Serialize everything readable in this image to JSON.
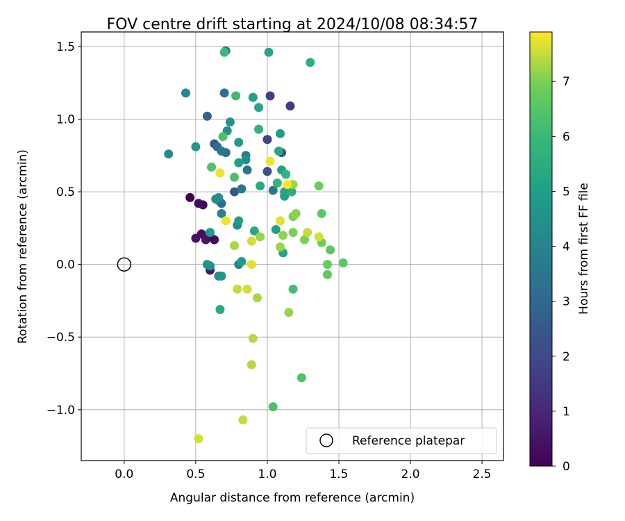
{
  "chart_data": {
    "type": "scatter",
    "title": "FOV centre drift starting at 2024/10/08 08:34:57",
    "xlabel": "Angular distance from reference (arcmin)",
    "ylabel": "Rotation from reference (arcmin)",
    "xlim": [
      -0.3,
      2.65
    ],
    "ylim": [
      -1.35,
      1.6
    ],
    "x_ticks": [
      0.0,
      0.5,
      1.0,
      1.5,
      2.0,
      2.5
    ],
    "x_tick_labels": [
      "0.0",
      "0.5",
      "1.0",
      "1.5",
      "2.0",
      "2.5"
    ],
    "y_ticks": [
      -1.0,
      -0.5,
      0.0,
      0.5,
      1.0,
      1.5
    ],
    "y_tick_labels": [
      "−1.0",
      "−0.5",
      "0.0",
      "0.5",
      "1.0",
      "1.5"
    ],
    "grid": true,
    "legend": {
      "placement": "lower-right",
      "label": "Reference platepar"
    },
    "reference_point": {
      "x": 0.0,
      "y": 0.0
    },
    "colorbar": {
      "label": "Hours from first FF file",
      "range": [
        0,
        7.9
      ],
      "ticks": [
        0,
        1,
        2,
        3,
        4,
        5,
        6,
        7
      ],
      "colormap": "viridis"
    },
    "points": [
      {
        "x": 0.46,
        "y": 0.46,
        "hours": 0.0
      },
      {
        "x": 0.52,
        "y": 0.42,
        "hours": 0.3
      },
      {
        "x": 0.55,
        "y": 0.41,
        "hours": 0.2
      },
      {
        "x": 0.5,
        "y": 0.18,
        "hours": 0.4
      },
      {
        "x": 0.54,
        "y": 0.21,
        "hours": 0.3
      },
      {
        "x": 0.57,
        "y": 0.17,
        "hours": 0.5
      },
      {
        "x": 0.6,
        "y": 0.19,
        "hours": 0.4
      },
      {
        "x": 0.63,
        "y": 0.17,
        "hours": 0.2
      },
      {
        "x": 0.6,
        "y": -0.04,
        "hours": 0.6
      },
      {
        "x": 1.16,
        "y": 1.09,
        "hours": 1.6
      },
      {
        "x": 1.02,
        "y": 1.16,
        "hours": 1.7
      },
      {
        "x": 1.0,
        "y": 0.86,
        "hours": 1.9
      },
      {
        "x": 1.1,
        "y": 0.77,
        "hours": 2.2
      },
      {
        "x": 0.63,
        "y": 0.83,
        "hours": 2.4
      },
      {
        "x": 0.58,
        "y": 1.02,
        "hours": 2.7
      },
      {
        "x": 0.77,
        "y": 0.5,
        "hours": 2.4
      },
      {
        "x": 1.0,
        "y": 0.64,
        "hours": 2.2
      },
      {
        "x": 0.66,
        "y": 0.44,
        "hours": 3.0
      },
      {
        "x": 0.68,
        "y": 0.42,
        "hours": 3.2
      },
      {
        "x": 0.7,
        "y": 1.18,
        "hours": 3.3
      },
      {
        "x": 0.65,
        "y": 0.81,
        "hours": 3.1
      },
      {
        "x": 0.71,
        "y": 0.77,
        "hours": 3.2
      },
      {
        "x": 0.68,
        "y": 0.78,
        "hours": 3.5
      },
      {
        "x": 0.71,
        "y": 1.47,
        "hours": 3.4
      },
      {
        "x": 0.82,
        "y": 0.52,
        "hours": 3.6
      },
      {
        "x": 0.86,
        "y": 0.65,
        "hours": 3.4
      },
      {
        "x": 0.85,
        "y": 0.75,
        "hours": 3.8
      },
      {
        "x": 1.04,
        "y": 0.51,
        "hours": 3.5
      },
      {
        "x": 0.68,
        "y": 0.35,
        "hours": 3.9
      },
      {
        "x": 0.79,
        "y": 0.27,
        "hours": 4.3
      },
      {
        "x": 0.8,
        "y": 0.0,
        "hours": 4.0
      },
      {
        "x": 0.43,
        "y": 1.18,
        "hours": 4.2
      },
      {
        "x": 0.31,
        "y": 0.76,
        "hours": 4.3
      },
      {
        "x": 0.72,
        "y": 0.92,
        "hours": 4.4
      },
      {
        "x": 0.74,
        "y": 0.98,
        "hours": 4.5
      },
      {
        "x": 0.85,
        "y": 0.72,
        "hours": 4.4
      },
      {
        "x": 0.5,
        "y": 0.81,
        "hours": 4.7
      },
      {
        "x": 0.66,
        "y": 0.46,
        "hours": 4.6
      },
      {
        "x": 0.64,
        "y": 0.45,
        "hours": 4.3
      },
      {
        "x": 0.58,
        "y": 0.0,
        "hours": 4.6
      },
      {
        "x": 0.6,
        "y": -0.01,
        "hours": 4.5
      },
      {
        "x": 0.66,
        "y": -0.08,
        "hours": 4.4
      },
      {
        "x": 0.68,
        "y": -0.08,
        "hours": 4.7
      },
      {
        "x": 0.6,
        "y": 0.22,
        "hours": 4.8
      },
      {
        "x": 0.82,
        "y": 0.02,
        "hours": 4.9
      },
      {
        "x": 0.8,
        "y": 0.84,
        "hours": 4.8
      },
      {
        "x": 0.8,
        "y": 0.7,
        "hours": 5.0
      },
      {
        "x": 0.8,
        "y": 0.3,
        "hours": 4.9
      },
      {
        "x": 1.01,
        "y": 1.46,
        "hours": 5.2
      },
      {
        "x": 0.9,
        "y": 1.15,
        "hours": 5.1
      },
      {
        "x": 0.94,
        "y": 1.08,
        "hours": 5.3
      },
      {
        "x": 1.09,
        "y": 0.9,
        "hours": 5.0
      },
      {
        "x": 1.08,
        "y": 0.78,
        "hours": 5.3
      },
      {
        "x": 1.1,
        "y": 0.65,
        "hours": 5.1
      },
      {
        "x": 1.12,
        "y": 0.5,
        "hours": 5.2
      },
      {
        "x": 1.12,
        "y": 0.47,
        "hours": 5.0
      },
      {
        "x": 1.06,
        "y": 0.24,
        "hours": 5.0
      },
      {
        "x": 1.11,
        "y": 0.08,
        "hours": 5.2
      },
      {
        "x": 0.95,
        "y": 0.54,
        "hours": 5.4
      },
      {
        "x": 0.91,
        "y": 0.23,
        "hours": 5.3
      },
      {
        "x": 0.67,
        "y": -0.31,
        "hours": 5.4
      },
      {
        "x": 1.3,
        "y": 1.39,
        "hours": 5.6
      },
      {
        "x": 0.94,
        "y": 0.93,
        "hours": 5.7
      },
      {
        "x": 1.13,
        "y": 0.62,
        "hours": 5.8
      },
      {
        "x": 1.07,
        "y": 0.56,
        "hours": 5.8
      },
      {
        "x": 1.17,
        "y": 0.5,
        "hours": 5.5
      },
      {
        "x": 0.7,
        "y": 1.46,
        "hours": 6.0
      },
      {
        "x": 0.78,
        "y": 1.16,
        "hours": 6.1
      },
      {
        "x": 0.69,
        "y": 0.88,
        "hours": 6.3
      },
      {
        "x": 0.61,
        "y": 0.67,
        "hours": 6.4
      },
      {
        "x": 0.77,
        "y": 0.6,
        "hours": 6.3
      },
      {
        "x": 1.18,
        "y": -0.17,
        "hours": 6.2
      },
      {
        "x": 1.24,
        "y": -0.78,
        "hours": 6.4
      },
      {
        "x": 1.04,
        "y": -0.98,
        "hours": 6.3
      },
      {
        "x": 1.38,
        "y": 0.35,
        "hours": 6.6
      },
      {
        "x": 1.36,
        "y": 0.54,
        "hours": 6.8
      },
      {
        "x": 1.44,
        "y": 0.1,
        "hours": 6.6
      },
      {
        "x": 1.42,
        "y": 0.0,
        "hours": 6.8
      },
      {
        "x": 1.42,
        "y": -0.07,
        "hours": 6.7
      },
      {
        "x": 1.53,
        "y": 0.01,
        "hours": 6.6
      },
      {
        "x": 1.38,
        "y": 0.15,
        "hours": 6.9
      },
      {
        "x": 1.26,
        "y": 0.17,
        "hours": 7.0
      },
      {
        "x": 1.18,
        "y": 0.22,
        "hours": 7.0
      },
      {
        "x": 1.11,
        "y": 0.2,
        "hours": 7.1
      },
      {
        "x": 1.18,
        "y": 0.33,
        "hours": 7.0
      },
      {
        "x": 1.2,
        "y": 0.35,
        "hours": 7.1
      },
      {
        "x": 1.18,
        "y": 0.55,
        "hours": 7.2
      },
      {
        "x": 0.95,
        "y": 0.19,
        "hours": 7.2
      },
      {
        "x": 0.77,
        "y": 0.13,
        "hours": 7.3
      },
      {
        "x": 1.09,
        "y": 0.12,
        "hours": 7.2
      },
      {
        "x": 1.15,
        "y": -0.33,
        "hours": 7.2
      },
      {
        "x": 0.93,
        "y": -0.23,
        "hours": 7.3
      },
      {
        "x": 0.9,
        "y": -0.51,
        "hours": 7.4
      },
      {
        "x": 0.89,
        "y": -0.69,
        "hours": 7.4
      },
      {
        "x": 0.83,
        "y": -1.07,
        "hours": 7.5
      },
      {
        "x": 0.52,
        "y": -1.2,
        "hours": 7.6
      },
      {
        "x": 0.79,
        "y": -0.17,
        "hours": 7.5
      },
      {
        "x": 0.86,
        "y": -0.17,
        "hours": 7.6
      },
      {
        "x": 0.89,
        "y": 0.0,
        "hours": 7.7
      },
      {
        "x": 0.89,
        "y": 0.16,
        "hours": 7.6
      },
      {
        "x": 1.28,
        "y": 0.22,
        "hours": 7.5
      },
      {
        "x": 1.36,
        "y": 0.19,
        "hours": 7.6
      },
      {
        "x": 1.09,
        "y": 0.3,
        "hours": 7.7
      },
      {
        "x": 1.02,
        "y": 0.71,
        "hours": 7.8
      },
      {
        "x": 1.14,
        "y": 0.55,
        "hours": 7.9
      },
      {
        "x": 0.67,
        "y": 0.63,
        "hours": 7.8
      },
      {
        "x": 0.71,
        "y": 0.3,
        "hours": 7.8
      }
    ]
  }
}
